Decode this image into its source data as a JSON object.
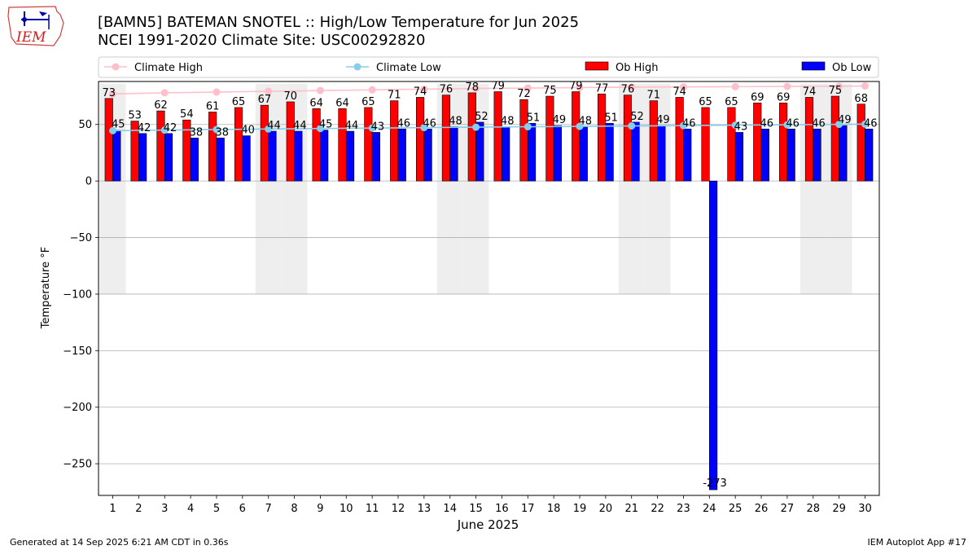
{
  "title": "[BAMN5] BATEMAN SNOTEL :: High/Low Temperature for Jun 2025",
  "subtitle": "NCEI 1991-2020 Climate Site: USC00292820",
  "footer_left": "Generated at 14 Sep 2025 6:21 AM CDT in 0.36s",
  "footer_right": "IEM Autoplot App #17",
  "logo_text": "IEM",
  "colors": {
    "ob_high": "#ff0000",
    "ob_low": "#0000ff",
    "climate_high": "#ffc0cb",
    "climate_low": "#87ceeb",
    "weekend_shade": "#eeeeee",
    "grid": "#b0b0b0"
  },
  "chart_data": {
    "type": "bar",
    "xlabel": "June 2025",
    "ylabel": "Temperature °F",
    "ylim": [
      -278,
      88
    ],
    "yticks": [
      50,
      0,
      -50,
      -100,
      -150,
      -200,
      -250
    ],
    "grid": true,
    "legend_placement": "top",
    "legend": [
      "Climate High",
      "Climate Low",
      "Ob High",
      "Ob Low"
    ],
    "categories": [
      "1",
      "2",
      "3",
      "4",
      "5",
      "6",
      "7",
      "8",
      "9",
      "10",
      "11",
      "12",
      "13",
      "14",
      "15",
      "16",
      "17",
      "18",
      "19",
      "20",
      "21",
      "22",
      "23",
      "24",
      "25",
      "26",
      "27",
      "28",
      "29",
      "30"
    ],
    "weekend_days": [
      1,
      7,
      8,
      14,
      15,
      21,
      22,
      28,
      29
    ],
    "series": [
      {
        "name": "Ob High",
        "type": "bar",
        "values": [
          73,
          53,
          62,
          54,
          61,
          65,
          67,
          70,
          64,
          64,
          65,
          71,
          74,
          76,
          78,
          79,
          72,
          75,
          79,
          77,
          76,
          71,
          74,
          65,
          65,
          69,
          69,
          74,
          75,
          68
        ]
      },
      {
        "name": "Ob Low",
        "type": "bar",
        "values": [
          45,
          42,
          42,
          38,
          38,
          40,
          44,
          44,
          45,
          44,
          43,
          46,
          46,
          48,
          52,
          48,
          51,
          49,
          48,
          51,
          52,
          49,
          46,
          -273,
          43,
          46,
          46,
          46,
          49,
          46
        ]
      },
      {
        "name": "Climate High",
        "type": "line",
        "values": [
          77,
          77.5,
          78,
          78.3,
          78.6,
          79,
          79.3,
          79.6,
          80,
          80.3,
          80.6,
          81,
          81.2,
          81.5,
          81.8,
          82,
          82.2,
          82.4,
          82.6,
          82.8,
          83,
          83.1,
          83.2,
          83.3,
          83.4,
          83.5,
          83.6,
          83.7,
          83.8,
          84
        ]
      },
      {
        "name": "Climate Low",
        "type": "line",
        "values": [
          44.5,
          44.8,
          45,
          45.3,
          45.5,
          45.7,
          46,
          46.2,
          46.4,
          46.6,
          46.8,
          47,
          47.2,
          47.4,
          47.6,
          47.8,
          48,
          48.1,
          48.3,
          48.5,
          48.7,
          48.8,
          49,
          49.2,
          49.4,
          49.6,
          49.7,
          49.9,
          50.1,
          50.3
        ]
      }
    ]
  }
}
